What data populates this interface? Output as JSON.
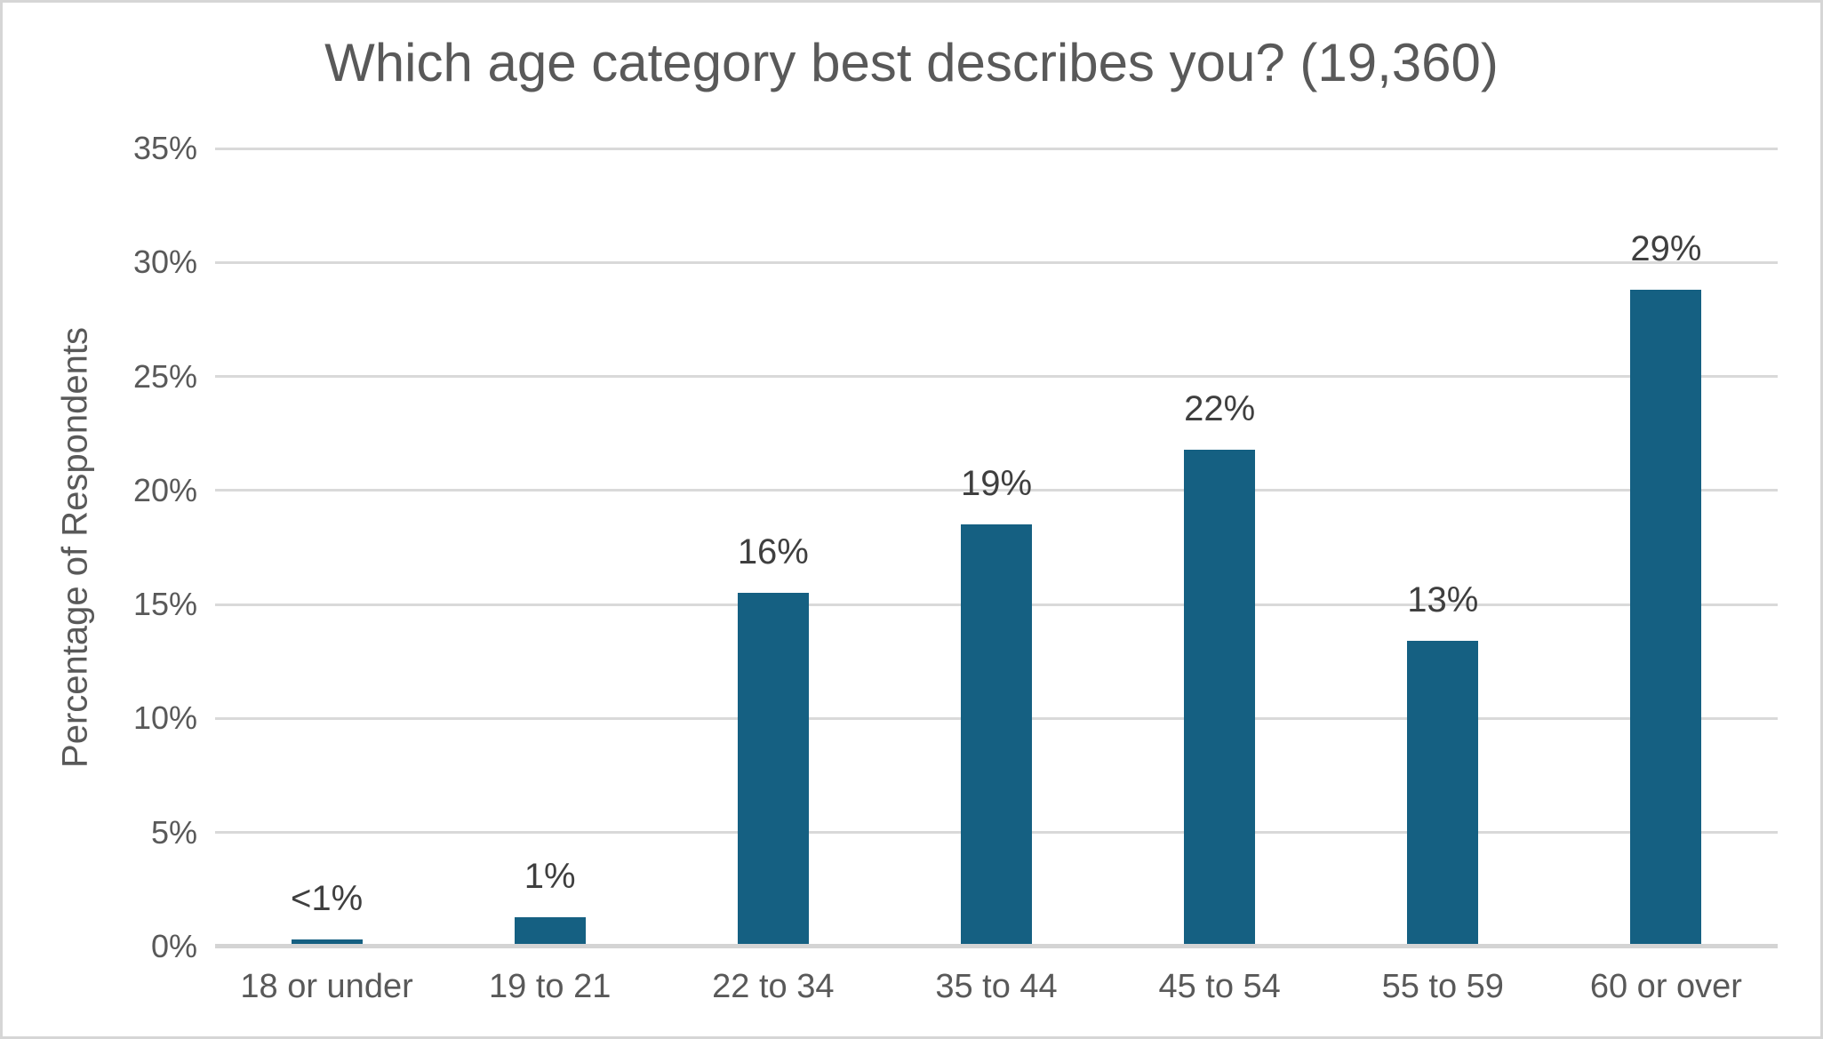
{
  "chart_data": {
    "type": "bar",
    "title": "Which age category best describes you? (19,360)",
    "xlabel": "",
    "ylabel": "Percentage of Respondents",
    "categories": [
      "18 or under",
      "19 to 21",
      "22 to 34",
      "35 to 44",
      "45 to 54",
      "55 to 59",
      "60 or over"
    ],
    "values": [
      0.3,
      1.3,
      15.5,
      18.5,
      21.8,
      13.4,
      28.8
    ],
    "data_labels": [
      "<1%",
      "1%",
      "16%",
      "19%",
      "22%",
      "13%",
      "29%"
    ],
    "yticks": [
      0,
      5,
      10,
      15,
      20,
      25,
      30,
      35
    ],
    "ytick_labels": [
      "0%",
      "5%",
      "10%",
      "15%",
      "20%",
      "25%",
      "30%",
      "35%"
    ],
    "ylim": [
      0,
      35
    ],
    "grid": true,
    "legend_position": "none",
    "colors": {
      "bar": "#156082",
      "gridline": "#d9d9d9",
      "axis_line": "#d4d4d4",
      "title_text": "#595959",
      "tick_text": "#595959",
      "data_label_text": "#3f3f3f",
      "border": "#d6d6d6",
      "background": "#ffffff"
    }
  }
}
